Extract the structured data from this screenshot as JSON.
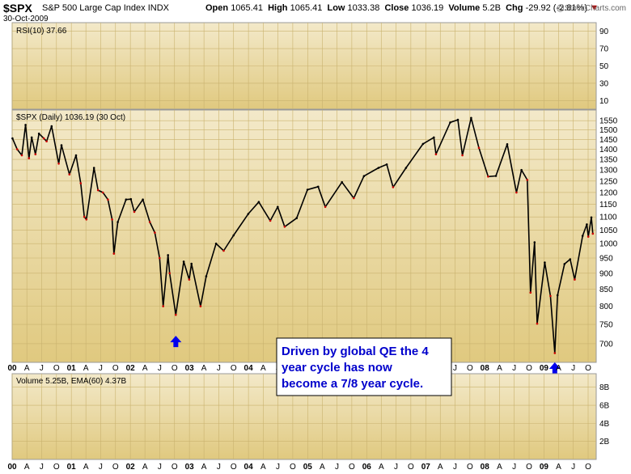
{
  "header": {
    "symbol": "$SPX",
    "description": "S&P 500 Large Cap Index",
    "exchange": "INDX",
    "date": "30-Oct-2009",
    "open_label": "Open",
    "open": "1065.41",
    "high_label": "High",
    "high": "1065.41",
    "low_label": "Low",
    "low": "1033.38",
    "close_label": "Close",
    "close": "1036.19",
    "volume_label": "Volume",
    "volume": "5.2B",
    "chg_label": "Chg",
    "chg": "-29.92 (-2.81%)",
    "chg_arrow": "▼",
    "brand": "@StockCharts.com"
  },
  "colors": {
    "panel_top": "#f3e9c9",
    "panel_bottom": "#e0c97f",
    "grid": "#c9b26e",
    "price_bar": "#000000",
    "down_bar": "#cc0000",
    "arrow": "#0000ee",
    "annotation_text": "#0000cc"
  },
  "chart_data": {
    "type": "line",
    "x_type": "date",
    "panels": {
      "rsi": {
        "label": "RSI(10) 37.66",
        "yticks": [
          10,
          30,
          50,
          70,
          90
        ],
        "ylim": [
          0,
          100
        ]
      },
      "price": {
        "label": "$SPX (Daily) 1036.19 (30 Oct)",
        "scale": "log",
        "yticks": [
          700,
          750,
          800,
          850,
          900,
          950,
          1000,
          1050,
          1100,
          1150,
          1200,
          1250,
          1300,
          1350,
          1400,
          1450,
          1500,
          1550
        ],
        "ylim": [
          655,
          1610
        ]
      },
      "volume": {
        "label": "Volume 5.25B, EMA(60) 4.37B",
        "yticks": [
          "2B",
          "4B",
          "6B",
          "8B"
        ],
        "ylim": [
          0,
          9.5
        ]
      }
    },
    "series": [
      {
        "values": [
          [
            "2000-01-03",
            1455
          ],
          [
            "2000-02-01",
            1400
          ],
          [
            "2000-03-01",
            1370
          ],
          [
            "2000-03-24",
            1527
          ],
          [
            "2000-04-14",
            1356
          ],
          [
            "2000-05-01",
            1460
          ],
          [
            "2000-05-24",
            1375
          ],
          [
            "2000-06-15",
            1480
          ],
          [
            "2000-07-15",
            1455
          ],
          [
            "2000-08-01",
            1440
          ],
          [
            "2000-09-01",
            1520
          ],
          [
            "2000-10-15",
            1330
          ],
          [
            "2000-11-01",
            1420
          ],
          [
            "2000-12-20",
            1280
          ],
          [
            "2001-01-30",
            1370
          ],
          [
            "2001-02-28",
            1240
          ],
          [
            "2001-03-22",
            1100
          ],
          [
            "2001-04-04",
            1090
          ],
          [
            "2001-05-21",
            1310
          ],
          [
            "2001-06-15",
            1210
          ],
          [
            "2001-07-15",
            1200
          ],
          [
            "2001-08-15",
            1170
          ],
          [
            "2001-09-10",
            1090
          ],
          [
            "2001-09-21",
            965
          ],
          [
            "2001-10-15",
            1080
          ],
          [
            "2001-12-05",
            1170
          ],
          [
            "2002-01-04",
            1172
          ],
          [
            "2002-01-25",
            1120
          ],
          [
            "2002-03-19",
            1170
          ],
          [
            "2002-05-01",
            1080
          ],
          [
            "2002-06-01",
            1040
          ],
          [
            "2002-07-01",
            950
          ],
          [
            "2002-07-23",
            800
          ],
          [
            "2002-08-22",
            960
          ],
          [
            "2002-09-01",
            900
          ],
          [
            "2002-10-09",
            776
          ],
          [
            "2002-11-27",
            938
          ],
          [
            "2002-12-31",
            880
          ],
          [
            "2003-01-14",
            931
          ],
          [
            "2003-03-11",
            800
          ],
          [
            "2003-04-15",
            890
          ],
          [
            "2003-06-15",
            1000
          ],
          [
            "2003-08-01",
            975
          ],
          [
            "2003-10-01",
            1030
          ],
          [
            "2003-12-31",
            1112
          ],
          [
            "2004-03-05",
            1160
          ],
          [
            "2004-05-15",
            1085
          ],
          [
            "2004-06-30",
            1140
          ],
          [
            "2004-08-12",
            1062
          ],
          [
            "2004-10-25",
            1095
          ],
          [
            "2004-12-31",
            1212
          ],
          [
            "2005-03-07",
            1225
          ],
          [
            "2005-04-20",
            1140
          ],
          [
            "2005-08-01",
            1245
          ],
          [
            "2005-10-13",
            1176
          ],
          [
            "2005-12-15",
            1272
          ],
          [
            "2006-03-15",
            1310
          ],
          [
            "2006-05-05",
            1326
          ],
          [
            "2006-06-13",
            1223
          ],
          [
            "2006-09-01",
            1310
          ],
          [
            "2006-12-15",
            1427
          ],
          [
            "2007-02-20",
            1460
          ],
          [
            "2007-03-05",
            1375
          ],
          [
            "2007-06-01",
            1540
          ],
          [
            "2007-07-19",
            1555
          ],
          [
            "2007-08-16",
            1370
          ],
          [
            "2007-10-09",
            1565
          ],
          [
            "2007-11-26",
            1407
          ],
          [
            "2008-01-22",
            1270
          ],
          [
            "2008-03-10",
            1273
          ],
          [
            "2008-05-19",
            1425
          ],
          [
            "2008-07-15",
            1200
          ],
          [
            "2008-08-15",
            1300
          ],
          [
            "2008-09-20",
            1255
          ],
          [
            "2008-10-10",
            840
          ],
          [
            "2008-11-04",
            1005
          ],
          [
            "2008-11-20",
            752
          ],
          [
            "2009-01-06",
            935
          ],
          [
            "2009-02-10",
            830
          ],
          [
            "2009-03-09",
            677
          ],
          [
            "2009-03-26",
            832
          ],
          [
            "2009-05-08",
            930
          ],
          [
            "2009-06-12",
            946
          ],
          [
            "2009-07-10",
            880
          ],
          [
            "2009-08-28",
            1028
          ],
          [
            "2009-09-23",
            1071
          ],
          [
            "2009-10-02",
            1025
          ],
          [
            "2009-10-21",
            1098
          ],
          [
            "2009-10-30",
            1036
          ]
        ]
      }
    ],
    "x_axis_labels": [
      {
        "date": "2000-01-01",
        "text": "00",
        "bold": true
      },
      {
        "date": "2000-04-01",
        "text": "A"
      },
      {
        "date": "2000-07-01",
        "text": "J"
      },
      {
        "date": "2000-10-01",
        "text": "O"
      },
      {
        "date": "2001-01-01",
        "text": "01",
        "bold": true
      },
      {
        "date": "2001-04-01",
        "text": "A"
      },
      {
        "date": "2001-07-01",
        "text": "J"
      },
      {
        "date": "2001-10-01",
        "text": "O"
      },
      {
        "date": "2002-01-01",
        "text": "02",
        "bold": true
      },
      {
        "date": "2002-04-01",
        "text": "A"
      },
      {
        "date": "2002-07-01",
        "text": "J"
      },
      {
        "date": "2002-10-01",
        "text": "O"
      },
      {
        "date": "2003-01-01",
        "text": "03",
        "bold": true
      },
      {
        "date": "2003-04-01",
        "text": "A"
      },
      {
        "date": "2003-07-01",
        "text": "J"
      },
      {
        "date": "2003-10-01",
        "text": "O"
      },
      {
        "date": "2004-01-01",
        "text": "04",
        "bold": true
      },
      {
        "date": "2004-04-01",
        "text": "A"
      },
      {
        "date": "2004-07-01",
        "text": "J"
      },
      {
        "date": "2004-10-01",
        "text": "O"
      },
      {
        "date": "2005-01-01",
        "text": "05",
        "bold": true
      },
      {
        "date": "2005-04-01",
        "text": "A"
      },
      {
        "date": "2005-07-01",
        "text": "J"
      },
      {
        "date": "2005-10-01",
        "text": "O"
      },
      {
        "date": "2006-01-01",
        "text": "06",
        "bold": true
      },
      {
        "date": "2006-04-01",
        "text": "A"
      },
      {
        "date": "2006-07-01",
        "text": "J"
      },
      {
        "date": "2006-10-01",
        "text": "O"
      },
      {
        "date": "2007-01-01",
        "text": "07",
        "bold": true
      },
      {
        "date": "2007-04-01",
        "text": "A"
      },
      {
        "date": "2007-07-01",
        "text": "J"
      },
      {
        "date": "2007-10-01",
        "text": "O"
      },
      {
        "date": "2008-01-01",
        "text": "08",
        "bold": true
      },
      {
        "date": "2008-04-01",
        "text": "A"
      },
      {
        "date": "2008-07-01",
        "text": "J"
      },
      {
        "date": "2008-10-01",
        "text": "O"
      },
      {
        "date": "2009-01-01",
        "text": "09",
        "bold": true
      },
      {
        "date": "2009-04-01",
        "text": "A"
      },
      {
        "date": "2009-07-01",
        "text": "J"
      },
      {
        "date": "2009-10-01",
        "text": "O"
      }
    ],
    "annotations": [
      {
        "type": "text",
        "lines": [
          "Driven by global QE the 4",
          "year cycle has now",
          "become a 7/8 year cycle."
        ]
      },
      {
        "type": "arrow-up",
        "date": "2002-10-09",
        "value": 720
      },
      {
        "type": "arrow-up",
        "date": "2009-03-09",
        "value": 655
      }
    ]
  }
}
